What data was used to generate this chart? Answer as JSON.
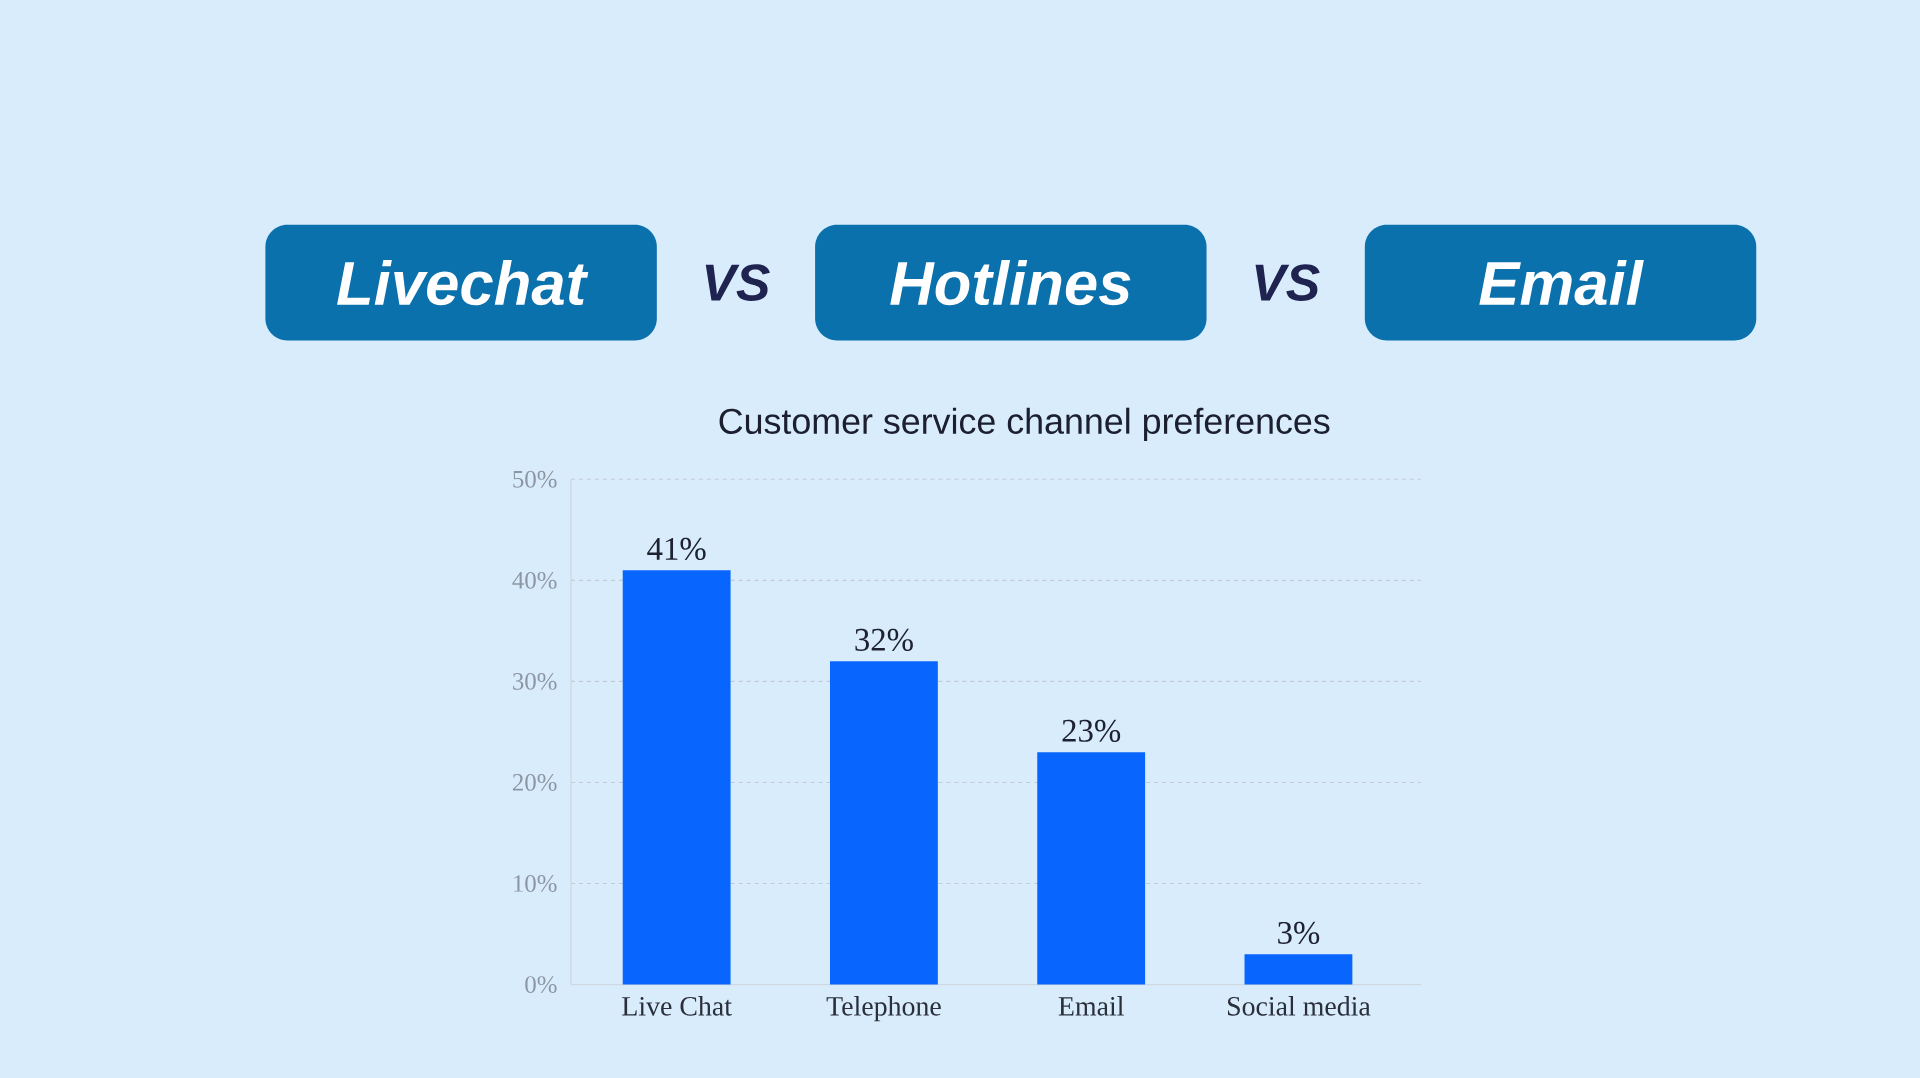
{
  "chart_data": {
    "type": "bar",
    "title": "Customer service channel preferences",
    "annotations": [
      "Livechat",
      "VS",
      "Hotlines",
      "VS",
      "Email"
    ],
    "categories": [
      "Live Chat",
      "Telephone",
      "Email",
      "Social media"
    ],
    "values": [
      41,
      32,
      23,
      3
    ],
    "value_labels": [
      "41%",
      "32%",
      "23%",
      "3%"
    ],
    "color": "#0866ff",
    "ylim": [
      0,
      50
    ],
    "yticks": [
      {
        "value": 0,
        "label": "0%"
      },
      {
        "value": 10,
        "label": "10%"
      },
      {
        "value": 20,
        "label": "20%"
      },
      {
        "value": 30,
        "label": "30%"
      },
      {
        "value": 40,
        "label": "40%"
      },
      {
        "value": 50,
        "label": "50%"
      }
    ],
    "grid": "y"
  }
}
